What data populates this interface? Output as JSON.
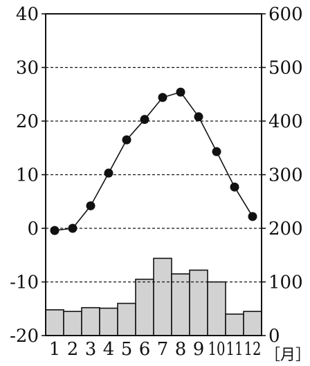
{
  "chart_data": {
    "type": "climograph",
    "categories": [
      "1",
      "2",
      "3",
      "4",
      "5",
      "6",
      "7",
      "8",
      "9",
      "10",
      "11",
      "12"
    ],
    "x_unit_label": "［月］",
    "left_axis": {
      "ticks": [
        "40",
        "30",
        "20",
        "10",
        "0",
        "-10",
        "-20"
      ],
      "ylim": [
        -20,
        40
      ]
    },
    "right_axis": {
      "ticks": [
        "600",
        "500",
        "400",
        "300",
        "200",
        "100",
        "0"
      ],
      "ylim": [
        0,
        600
      ]
    },
    "grid": "dashed horizontal",
    "series": [
      {
        "type": "line",
        "axis": "left",
        "values": [
          -0.4,
          0.0,
          4.2,
          10.3,
          16.5,
          20.3,
          24.4,
          25.4,
          20.8,
          14.3,
          7.7,
          2.2
        ],
        "color": "#111111"
      },
      {
        "type": "bar",
        "axis": "right",
        "values": [
          48,
          45,
          52,
          51,
          60,
          105,
          144,
          115,
          122,
          100,
          40,
          45
        ],
        "color": "#d2d2d2"
      }
    ]
  }
}
